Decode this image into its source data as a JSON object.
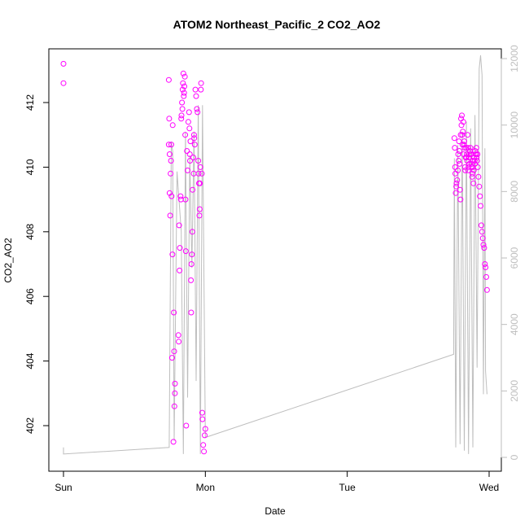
{
  "chart_data": {
    "type": "scatter",
    "title": "ATOM2 Northeast_Pacific_2 CO2_AO2",
    "xlabel": "Date",
    "ylabel": "CO2_AO2",
    "xlim": [
      0,
      3.0
    ],
    "ylim": [
      401.0,
      413.2
    ],
    "y2lim": [
      -100,
      12200
    ],
    "x_ticks": [
      {
        "value": 0,
        "label": "Sun"
      },
      {
        "value": 1,
        "label": "Mon"
      },
      {
        "value": 2,
        "label": "Tue"
      },
      {
        "value": 3,
        "label": "Wed"
      }
    ],
    "y_ticks": [
      402,
      404,
      406,
      408,
      410,
      412
    ],
    "y2_ticks": [
      0,
      2000,
      4000,
      6000,
      8000,
      10000,
      12000
    ],
    "grid": false,
    "colors": {
      "points": "#ff00ff",
      "line": "#bebebe",
      "secondary_axis": "#bebebe"
    },
    "series": [
      {
        "type": "points",
        "x": [
          0.0,
          0.0,
          0.742,
          0.742,
          0.745,
          0.748,
          0.748,
          0.752,
          0.755,
          0.758,
          0.76,
          0.762,
          0.765,
          0.768,
          0.77,
          0.775,
          0.778,
          0.78,
          0.782,
          0.785,
          0.786,
          0.81,
          0.812,
          0.815,
          0.818,
          0.82,
          0.825,
          0.828,
          0.83,
          0.832,
          0.835,
          0.838,
          0.84,
          0.842,
          0.845,
          0.848,
          0.85,
          0.852,
          0.855,
          0.858,
          0.86,
          0.862,
          0.865,
          0.87,
          0.875,
          0.88,
          0.885,
          0.888,
          0.89,
          0.892,
          0.895,
          0.898,
          0.9,
          0.902,
          0.905,
          0.908,
          0.91,
          0.915,
          0.918,
          0.92,
          0.922,
          0.925,
          0.93,
          0.935,
          0.94,
          0.945,
          0.95,
          0.952,
          0.955,
          0.958,
          0.96,
          0.962,
          0.965,
          0.968,
          0.97,
          0.975,
          0.978,
          0.98,
          0.985,
          0.99,
          0.995,
          1.0,
          2.755,
          2.758,
          2.76,
          2.762,
          2.765,
          2.768,
          2.77,
          2.775,
          2.78,
          2.782,
          2.785,
          2.788,
          2.79,
          2.792,
          2.795,
          2.798,
          2.8,
          2.802,
          2.805,
          2.808,
          2.81,
          2.812,
          2.815,
          2.818,
          2.82,
          2.822,
          2.825,
          2.828,
          2.83,
          2.832,
          2.835,
          2.838,
          2.84,
          2.842,
          2.845,
          2.848,
          2.85,
          2.852,
          2.855,
          2.858,
          2.86,
          2.862,
          2.865,
          2.868,
          2.87,
          2.872,
          2.875,
          2.878,
          2.88,
          2.882,
          2.885,
          2.888,
          2.89,
          2.892,
          2.895,
          2.898,
          2.9,
          2.902,
          2.905,
          2.908,
          2.91,
          2.912,
          2.915,
          2.918,
          2.92,
          2.925,
          2.93,
          2.935,
          2.94,
          2.945,
          2.95,
          2.955,
          2.96,
          2.965,
          2.97,
          2.975,
          2.98,
          2.985
        ],
        "y": [
          413.2,
          412.6,
          412.7,
          410.7,
          411.5,
          410.4,
          409.2,
          408.5,
          409.8,
          410.2,
          410.7,
          409.1,
          404.1,
          407.3,
          411.3,
          401.5,
          405.5,
          404.3,
          402.6,
          403.0,
          403.3,
          404.8,
          404.6,
          408.2,
          406.8,
          407.5,
          409.1,
          409.0,
          411.5,
          411.6,
          412.0,
          411.8,
          412.4,
          412.6,
          412.9,
          412.2,
          412.3,
          412.5,
          412.8,
          411.0,
          409.0,
          407.4,
          402.0,
          410.5,
          409.9,
          411.4,
          411.7,
          411.2,
          410.4,
          410.2,
          410.8,
          406.5,
          405.5,
          407.0,
          407.3,
          408.0,
          409.3,
          410.3,
          409.8,
          411.0,
          410.9,
          410.7,
          412.4,
          412.2,
          411.8,
          411.7,
          410.2,
          409.8,
          409.5,
          408.5,
          408.7,
          409.5,
          410.0,
          412.4,
          412.6,
          409.8,
          402.4,
          402.2,
          401.4,
          401.2,
          401.7,
          401.9,
          410.9,
          410.6,
          410.0,
          409.8,
          409.2,
          409.4,
          409.5,
          409.6,
          409.9,
          410.4,
          410.2,
          410.8,
          410.5,
          410.1,
          409.3,
          409.0,
          411.0,
          411.5,
          411.3,
          411.6,
          411.0,
          410.7,
          411.1,
          411.4,
          410.4,
          410.7,
          410.8,
          410.6,
          410.0,
          409.9,
          410.3,
          410.6,
          410.3,
          410.4,
          410.2,
          411.0,
          410.6,
          409.9,
          410.0,
          410.3,
          410.1,
          410.4,
          410.5,
          410.6,
          410.4,
          410.4,
          410.0,
          410.1,
          409.7,
          409.8,
          410.0,
          410.2,
          409.5,
          409.9,
          410.3,
          410.2,
          410.1,
          410.5,
          410.4,
          410.4,
          410.6,
          410.3,
          410.2,
          410.4,
          410.0,
          409.7,
          409.4,
          409.1,
          408.8,
          408.2,
          408.0,
          407.8,
          407.6,
          407.5,
          407.0,
          406.9,
          406.6,
          406.2
        ],
        "note_x_units": "days since Sunday 00:00"
      },
      {
        "type": "line",
        "axis": "secondary",
        "x": [
          0.0,
          0.0,
          0.745,
          0.76,
          0.77,
          0.78,
          0.8,
          0.83,
          0.845,
          0.86,
          0.875,
          0.89,
          0.905,
          0.92,
          0.935,
          0.95,
          0.965,
          0.98,
          1.0,
          2.75,
          2.755,
          2.765,
          2.78,
          2.795,
          2.81,
          2.825,
          2.84,
          2.855,
          2.87,
          2.885,
          2.9,
          2.915,
          2.93,
          2.94,
          2.95,
          2.96,
          2.97,
          2.975,
          2.985
        ],
        "y": [
          300,
          100,
          300,
          9500,
          9200,
          500,
          8600,
          6800,
          100,
          9800,
          1800,
          9100,
          5700,
          9800,
          2300,
          10600,
          100,
          10600,
          600,
          3100,
          9000,
          300,
          9400,
          400,
          9800,
          200,
          10100,
          100,
          9900,
          300,
          10300,
          2700,
          11700,
          12100,
          11500,
          1900,
          9300,
          2600,
          1900
        ]
      }
    ]
  }
}
